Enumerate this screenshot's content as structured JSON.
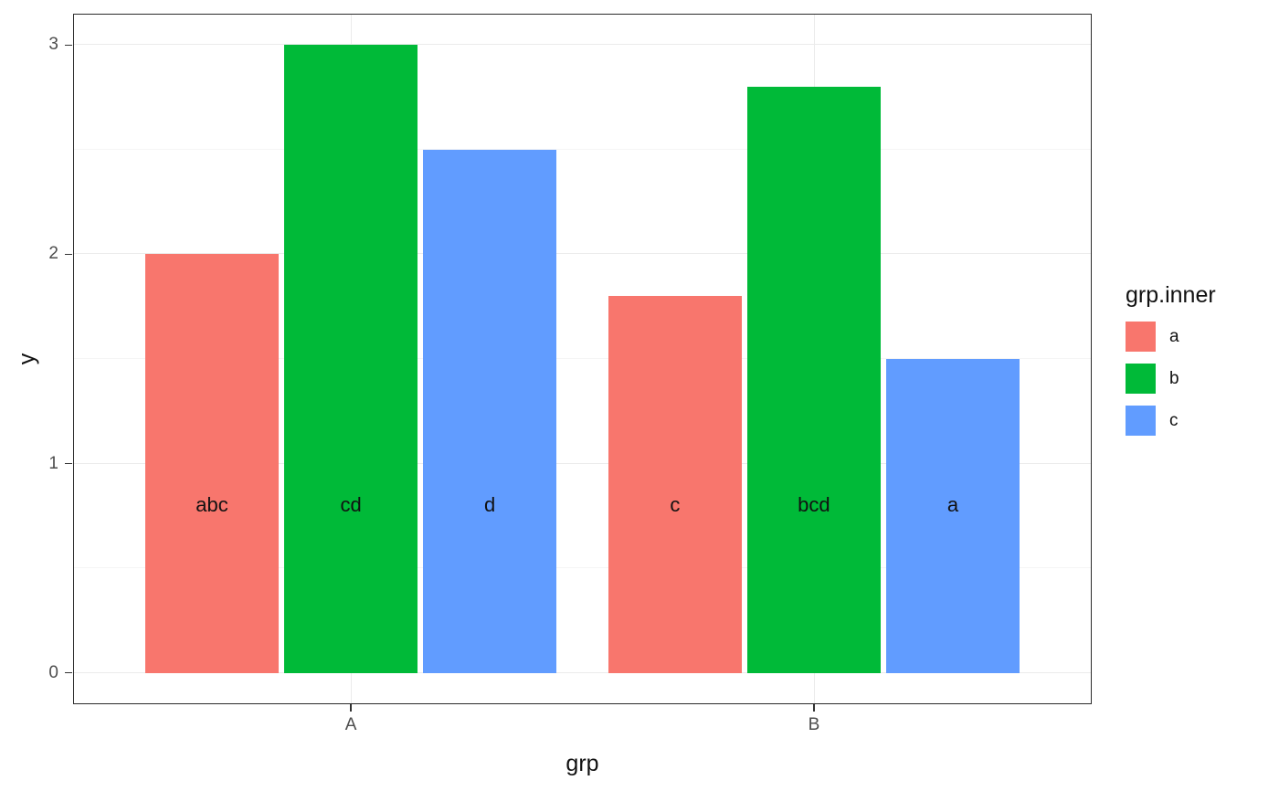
{
  "chart_data": {
    "type": "bar",
    "title": "",
    "xlabel": "grp",
    "ylabel": "y",
    "categories": [
      "A",
      "B"
    ],
    "series": [
      {
        "name": "a",
        "color": "#F8766D",
        "values": [
          2.0,
          1.8
        ],
        "bar_labels": [
          "abc",
          "c"
        ]
      },
      {
        "name": "b",
        "color": "#00BA38",
        "values": [
          3.0,
          2.8
        ],
        "bar_labels": [
          "cd",
          "bcd"
        ]
      },
      {
        "name": "c",
        "color": "#619CFF",
        "values": [
          2.5,
          1.5
        ],
        "bar_labels": [
          "d",
          "a"
        ]
      }
    ],
    "bar_label_y": 0.8,
    "ylim": [
      0,
      3
    ],
    "yticks": [
      0,
      1,
      2,
      3
    ],
    "ytick_labels": [
      "0",
      "1",
      "2",
      "3"
    ],
    "grid": true,
    "legend_title": "grp.inner",
    "legend_position": "right",
    "panel_background": "#ffffff",
    "grid_major_color": "#ebebeb",
    "grid_minor_color": "#f5f5f5"
  }
}
